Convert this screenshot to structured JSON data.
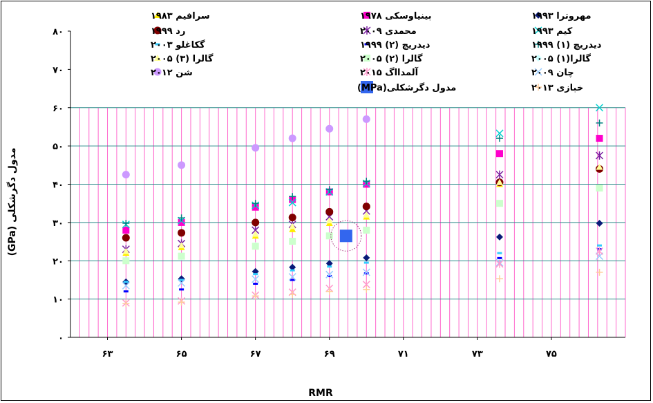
{
  "chart_data": {
    "type": "scatter",
    "xlabel": "RMR",
    "ylabel": "مدول دگرشکلی (GPa)",
    "xlim": [
      62,
      77
    ],
    "ylim": [
      0,
      80
    ],
    "x_ticks": [
      63,
      65,
      67,
      69,
      71,
      73,
      75
    ],
    "x_tick_labels": [
      "۶۳",
      "۶۵",
      "۶۷",
      "۶۹",
      "۷۱",
      "۷۳",
      "۷۵"
    ],
    "y_ticks": [
      0,
      10,
      20,
      30,
      40,
      50,
      60,
      70,
      80
    ],
    "y_tick_labels": [
      "۰",
      "۱۰",
      "۲۰",
      "۳۰",
      "۴۰",
      "۵۰",
      "۶۰",
      "۷۰",
      "۸۰"
    ],
    "grid": true,
    "legend_position": "top",
    "series": [
      {
        "name": "مهروترا ۱۹۹۳",
        "marker": "diamond",
        "color": "#0a1a78",
        "x": [
          63.5,
          65,
          67,
          68,
          69,
          70,
          73.6,
          76.3
        ],
        "y": [
          14.5,
          15.3,
          17.2,
          18.3,
          19.3,
          20.8,
          26.2,
          29.8
        ]
      },
      {
        "name": "بینیاوسکی ۱۹۷۸",
        "marker": "square",
        "color": "#ff00cc",
        "x": [
          63.5,
          65,
          67,
          68,
          69,
          70,
          73.6,
          76.3
        ],
        "y": [
          28,
          30,
          34,
          36,
          38,
          40,
          48,
          52
        ]
      },
      {
        "name": "سرافیم ۱۹۸۳",
        "marker": "triangle",
        "color": "#ffee00",
        "x": [
          63.5,
          65,
          67,
          68,
          69,
          70,
          73.6,
          76.3
        ],
        "y": [
          22,
          23.5,
          26.5,
          28.2,
          29.8,
          31.5,
          40,
          44
        ]
      },
      {
        "name": "کیم ۱۹۹۳",
        "marker": "x",
        "color": "#00d0d0",
        "x": [
          63.5,
          65,
          67,
          68,
          69,
          70,
          73.6,
          76.3
        ],
        "y": [
          29.5,
          30.5,
          34.5,
          35.2,
          38,
          40.2,
          53.3,
          60
        ]
      },
      {
        "name": "محمدی ۲۰۰۹",
        "marker": "star",
        "color": "#7a1fa0",
        "x": [
          63.5,
          65,
          67,
          68,
          69,
          70,
          73.6,
          76.3
        ],
        "y": [
          23,
          24.5,
          28,
          29.5,
          31.5,
          33,
          42.5,
          47.5
        ]
      },
      {
        "name": "رد ۱۹۹۹",
        "marker": "circle",
        "color": "#800000",
        "x": [
          63.5,
          65,
          67,
          68,
          69,
          70,
          73.6,
          76.3
        ],
        "y": [
          26,
          27.3,
          30,
          31.3,
          32.8,
          34.2,
          40.5,
          44
        ]
      },
      {
        "name": "دیدریچ (۱) ۱۹۹۹",
        "marker": "plus",
        "color": "#008080",
        "x": [
          63.5,
          65,
          67,
          68,
          69,
          70,
          73.6,
          76.3
        ],
        "y": [
          29.8,
          31.2,
          35,
          36.8,
          38.6,
          40.8,
          52,
          56
        ]
      },
      {
        "name": "دیدریچ (۲) ۱۹۹۹",
        "marker": "dash",
        "color": "#0000ff",
        "x": [
          63.5,
          65,
          67,
          68,
          69,
          70,
          73.6,
          76.3
        ],
        "y": [
          12,
          12.5,
          14,
          15,
          16,
          16.7,
          20.7,
          23
        ]
      },
      {
        "name": "گکاغلو ۲۰۰۳",
        "marker": "dash",
        "color": "#33ccff",
        "x": [
          63.5,
          65,
          67,
          68,
          69,
          70,
          73.6,
          76.3
        ],
        "y": [
          14.5,
          15,
          16.5,
          17.5,
          18.5,
          19.5,
          22,
          24
        ]
      },
      {
        "name": "گالرا(۱) ۲۰۰۵",
        "marker": "diamond",
        "color": "#ccffff",
        "x": [
          63.5,
          65,
          67,
          68,
          69,
          70,
          73.6,
          76.3
        ],
        "y": [
          20,
          21,
          24,
          25,
          26.5,
          28,
          35,
          39
        ]
      },
      {
        "name": "گالرا (۲) ۲۰۰۵",
        "marker": "square",
        "color": "#ccffcc",
        "x": [
          63.5,
          65,
          67,
          68,
          69,
          70,
          73.6,
          76.3
        ],
        "y": [
          20,
          21.2,
          23.8,
          25.1,
          26.5,
          28,
          35,
          39
        ]
      },
      {
        "name": "گالرا (۳) ۲۰۰۵",
        "marker": "triangle",
        "color": "#ffff99",
        "x": [
          63.5,
          65,
          67,
          68,
          69,
          70,
          73.6,
          76.3
        ],
        "y": [
          22.5,
          24,
          27,
          29,
          30.5,
          32,
          40.5,
          44.5
        ]
      },
      {
        "name": "چان ۲۰۰۹",
        "marker": "x",
        "color": "#99ccff",
        "x": [
          63.5,
          65,
          67,
          68,
          69,
          70,
          73.6,
          76.3
        ],
        "y": [
          13.5,
          14.2,
          15.2,
          15.8,
          16.4,
          17,
          19.5,
          21.2
        ]
      },
      {
        "name": "آلمدااگ ۲۰۱۵",
        "marker": "star",
        "color": "#ff99cc",
        "x": [
          63.5,
          65,
          67,
          68,
          69,
          70,
          73.6,
          76.3
        ],
        "y": [
          9,
          9.5,
          11,
          11.8,
          12.8,
          13.8,
          19.2,
          22.5
        ]
      },
      {
        "name": "شن ۲۰۱۲",
        "marker": "circle",
        "color": "#cc99ff",
        "x": [
          63.5,
          65,
          67,
          68,
          69,
          70
        ],
        "y": [
          42.5,
          45,
          49.5,
          52,
          54.5,
          57
        ]
      },
      {
        "name": "خبازی ۲۰۱۳",
        "marker": "plus",
        "color": "#ffcc99",
        "x": [
          63.5,
          65,
          67,
          68,
          69,
          70,
          73.6,
          76.3
        ],
        "y": [
          8.8,
          9.2,
          10.8,
          11.2,
          12,
          12.5,
          15.3,
          17
        ]
      },
      {
        "name": "مدول دگرشکلی(MPa)",
        "marker": "big-square",
        "color": "#3366ee",
        "x": [
          69.45
        ],
        "y": [
          26.5
        ],
        "highlight": true
      }
    ]
  }
}
